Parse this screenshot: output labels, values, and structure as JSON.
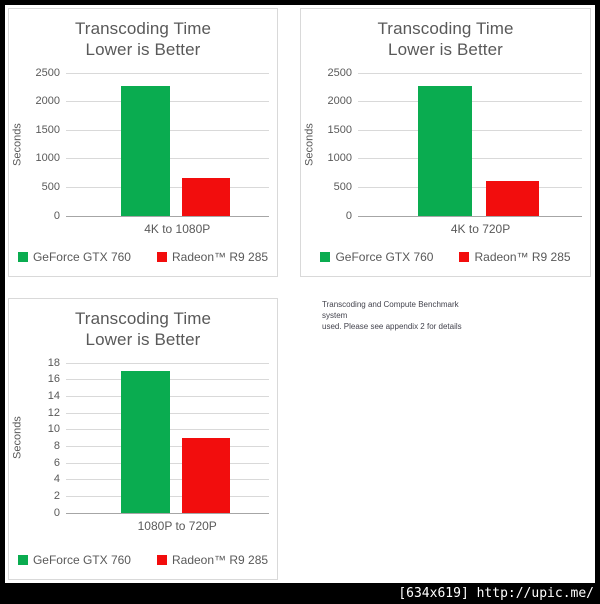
{
  "watermark": {
    "text": "[634x619] http://upic.me/"
  },
  "note": {
    "line1": "Transcoding and Compute Benchmark system",
    "line2": "used. Please see appendix 2 for details"
  },
  "colors": {
    "green": "#0AAC50",
    "red": "#F20D0D",
    "text_gray": "#595959",
    "gridline": "#D9D9D9",
    "axis_line": "#A6A6A6",
    "panel_border": "#D9D9D9",
    "frame": "#000000"
  },
  "chart_data": [
    {
      "type": "bar",
      "title": "Transcoding Time",
      "subtitle": "Lower is Better",
      "ylabel": "Seconds",
      "category": "4K to 1080P",
      "ylim": [
        0,
        2500
      ],
      "ystep": 500,
      "grid": true,
      "legend_position": "bottom",
      "series": [
        {
          "name": "GeForce GTX 760",
          "value": 2270,
          "color": "#0AAC50"
        },
        {
          "name": "Radeon™  R9 285",
          "value": 650,
          "color": "#F20D0D"
        }
      ]
    },
    {
      "type": "bar",
      "title": "Transcoding Time",
      "subtitle": "Lower is Better",
      "ylabel": "Seconds",
      "category": "4K to 720P",
      "ylim": [
        0,
        2500
      ],
      "ystep": 500,
      "grid": true,
      "legend_position": "bottom",
      "series": [
        {
          "name": "GeForce GTX 760",
          "value": 2270,
          "color": "#0AAC50"
        },
        {
          "name": "Radeon™  R9 285",
          "value": 600,
          "color": "#F20D0D"
        }
      ]
    },
    {
      "type": "bar",
      "title": "Transcoding Time",
      "subtitle": "Lower is Better",
      "ylabel": "Seconds",
      "category": "1080P to 720P",
      "ylim": [
        0,
        18
      ],
      "ystep": 2,
      "grid": true,
      "legend_position": "bottom",
      "series": [
        {
          "name": "GeForce GTX 760",
          "value": 17,
          "color": "#0AAC50"
        },
        {
          "name": "Radeon™ R9 285",
          "value": 9,
          "color": "#F20D0D"
        }
      ]
    }
  ]
}
